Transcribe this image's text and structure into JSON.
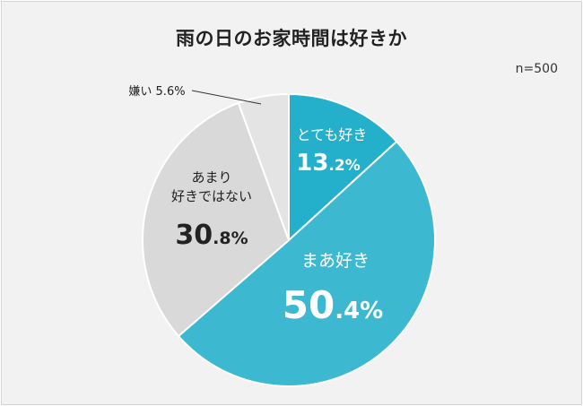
{
  "chart_data": {
    "type": "pie",
    "title": "雨の日のお家時間は好きか",
    "sample_size": "n=500",
    "slices": [
      {
        "name": "とても好き",
        "name_lines": [
          "とても好き"
        ],
        "value": 13.2,
        "int_part": "13",
        "dec_part": ".2%",
        "color": "#24afcb",
        "text_color": "#ffffff"
      },
      {
        "name": "まあ好き",
        "name_lines": [
          "まあ好き"
        ],
        "value": 50.4,
        "int_part": "50",
        "dec_part": ".4%",
        "color": "#3cb9d0",
        "text_color": "#ffffff"
      },
      {
        "name": "あまり好きではない",
        "name_lines": [
          "あまり",
          "好きではない"
        ],
        "value": 30.8,
        "int_part": "30",
        "dec_part": ".8%",
        "color": "#d9d9d9",
        "text_color": "#222222"
      },
      {
        "name": "嫌い",
        "name_lines": [
          "嫌い"
        ],
        "value": 5.6,
        "int_part": "",
        "dec_part": "",
        "label_text": "嫌い 5.6%",
        "color": "#e4e4e4",
        "text_color": "#222222"
      }
    ]
  }
}
